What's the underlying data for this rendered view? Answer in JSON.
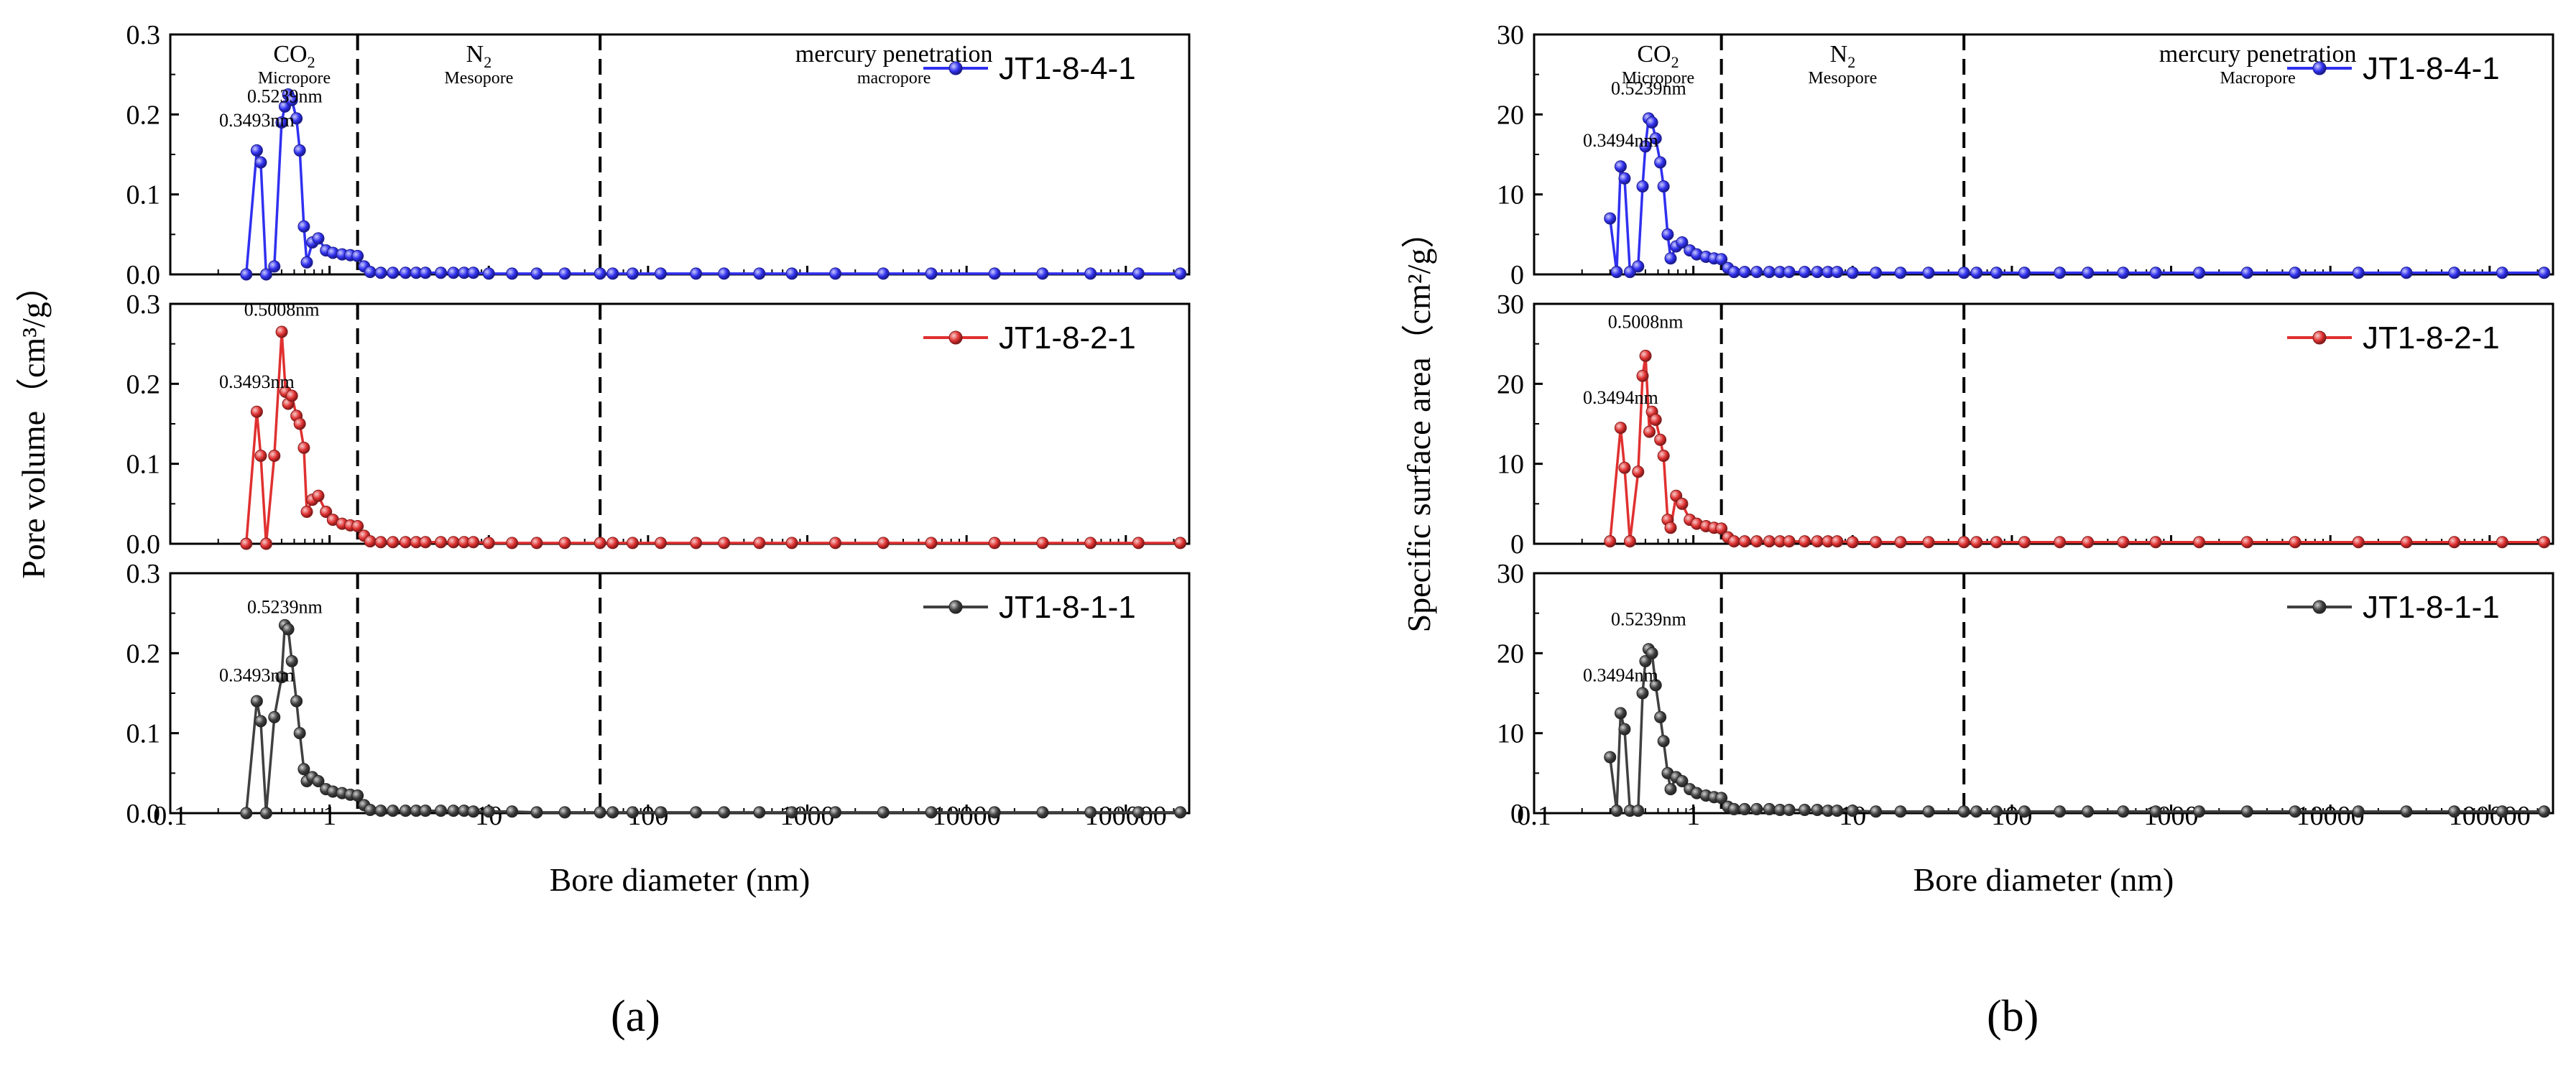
{
  "figure_labels": [
    "(a)",
    "(b)"
  ],
  "chart_data": [
    {
      "type": "line",
      "panel_label": "(a)",
      "xscale": "log",
      "xlabel": "Bore diameter (nm)",
      "ylabel": "Pore volume（cm³/g）",
      "xlim": [
        0.1,
        250000
      ],
      "x_ticks": [
        {
          "value": 0.1,
          "label": "0.1"
        },
        {
          "value": 1,
          "label": "1"
        },
        {
          "value": 10,
          "label": "10"
        },
        {
          "value": 100,
          "label": "100"
        },
        {
          "value": 1000,
          "label": "1000"
        },
        {
          "value": 10000,
          "label": "10000"
        },
        {
          "value": 100000,
          "label": "100000"
        }
      ],
      "dividers": [
        1.5,
        50
      ],
      "regions": [
        {
          "label": "CO₂",
          "sublabel": "Micropore",
          "x": 0.6
        },
        {
          "label": "N₂",
          "sublabel": "Mesopore",
          "x": 8.66
        },
        {
          "label": "mercury penetration",
          "sublabel": "macropore",
          "x": 3500
        }
      ],
      "subplots": [
        {
          "series": {
            "name": "JT1-8-4-1",
            "color": "#3030f0",
            "x": [
              0.3,
              0.3493,
              0.37,
              0.4,
              0.45,
              0.5,
              0.5239,
              0.55,
              0.58,
              0.62,
              0.65,
              0.69,
              0.72,
              0.78,
              0.85,
              0.95,
              1.05,
              1.2,
              1.35,
              1.5,
              1.65,
              1.8,
              2.1,
              2.5,
              3,
              3.5,
              4,
              5,
              6,
              7,
              8,
              10,
              14,
              20,
              30,
              50,
              60,
              80,
              120,
              200,
              300,
              500,
              800,
              1500,
              3000,
              6000,
              15000,
              30000,
              60000,
              120000,
              220000
            ],
            "y": [
              0.0,
              0.155,
              0.14,
              0.0,
              0.01,
              0.19,
              0.21,
              0.225,
              0.218,
              0.195,
              0.155,
              0.06,
              0.015,
              0.04,
              0.045,
              0.03,
              0.027,
              0.025,
              0.024,
              0.023,
              0.01,
              0.003,
              0.002,
              0.002,
              0.002,
              0.002,
              0.002,
              0.002,
              0.002,
              0.002,
              0.002,
              0.001,
              0.001,
              0.001,
              0.001,
              0.001,
              0.001,
              0.001,
              0.001,
              0.001,
              0.001,
              0.001,
              0.001,
              0.001,
              0.001,
              0.001,
              0.001,
              0.001,
              0.001,
              0.001,
              0.001
            ]
          },
          "ylim": [
            0,
            0.3
          ],
          "y_ticks": [
            {
              "value": 0,
              "label": "0.0"
            },
            {
              "value": 0.1,
              "label": "0.1"
            },
            {
              "value": 0.2,
              "label": "0.2"
            },
            {
              "value": 0.3,
              "label": "0.3"
            }
          ],
          "annotations": [
            {
              "text": "0.5239nm",
              "x": 0.5239,
              "y": 0.215
            },
            {
              "text": "0.3493nm",
              "x": 0.3493,
              "y": 0.185
            }
          ]
        },
        {
          "series": {
            "name": "JT1-8-2-1",
            "color": "#e03030",
            "x": [
              0.3,
              0.3493,
              0.37,
              0.4,
              0.45,
              0.5008,
              0.53,
              0.55,
              0.58,
              0.62,
              0.65,
              0.69,
              0.72,
              0.78,
              0.85,
              0.95,
              1.05,
              1.2,
              1.35,
              1.5,
              1.65,
              1.8,
              2.1,
              2.5,
              3,
              3.5,
              4,
              5,
              6,
              7,
              8,
              10,
              14,
              20,
              30,
              50,
              60,
              80,
              120,
              200,
              300,
              500,
              800,
              1500,
              3000,
              6000,
              15000,
              30000,
              60000,
              120000,
              220000
            ],
            "y": [
              0.0,
              0.165,
              0.11,
              0.0,
              0.11,
              0.265,
              0.19,
              0.175,
              0.185,
              0.16,
              0.15,
              0.12,
              0.04,
              0.055,
              0.06,
              0.04,
              0.03,
              0.025,
              0.023,
              0.022,
              0.01,
              0.003,
              0.002,
              0.002,
              0.002,
              0.002,
              0.002,
              0.002,
              0.002,
              0.002,
              0.002,
              0.001,
              0.001,
              0.001,
              0.001,
              0.001,
              0.001,
              0.001,
              0.001,
              0.001,
              0.001,
              0.001,
              0.001,
              0.001,
              0.001,
              0.001,
              0.001,
              0.001,
              0.001,
              0.001,
              0.001
            ]
          },
          "ylim": [
            0,
            0.3
          ],
          "y_ticks": [
            {
              "value": 0,
              "label": "0.0"
            },
            {
              "value": 0.1,
              "label": "0.1"
            },
            {
              "value": 0.2,
              "label": "0.2"
            },
            {
              "value": 0.3,
              "label": "0.3"
            }
          ],
          "annotations": [
            {
              "text": "0.5008nm",
              "x": 0.5008,
              "y": 0.285
            },
            {
              "text": "0.3493nm",
              "x": 0.3493,
              "y": 0.195
            }
          ]
        },
        {
          "series": {
            "name": "JT1-8-1-1",
            "color": "#404040",
            "x": [
              0.3,
              0.3493,
              0.37,
              0.4,
              0.45,
              0.5,
              0.5239,
              0.55,
              0.58,
              0.62,
              0.65,
              0.69,
              0.72,
              0.78,
              0.85,
              0.95,
              1.05,
              1.2,
              1.35,
              1.5,
              1.65,
              1.8,
              2.1,
              2.5,
              3,
              3.5,
              4,
              5,
              6,
              7,
              8,
              10,
              14,
              20,
              30,
              50,
              60,
              80,
              120,
              200,
              300,
              500,
              800,
              1500,
              3000,
              6000,
              15000,
              30000,
              60000,
              120000,
              220000
            ],
            "y": [
              0.0,
              0.14,
              0.115,
              0.0,
              0.12,
              0.17,
              0.235,
              0.23,
              0.19,
              0.14,
              0.1,
              0.055,
              0.04,
              0.045,
              0.04,
              0.03,
              0.027,
              0.025,
              0.023,
              0.022,
              0.01,
              0.004,
              0.003,
              0.003,
              0.003,
              0.003,
              0.003,
              0.003,
              0.003,
              0.003,
              0.002,
              0.002,
              0.002,
              0.001,
              0.001,
              0.001,
              0.001,
              0.001,
              0.001,
              0.001,
              0.001,
              0.001,
              0.001,
              0.001,
              0.001,
              0.001,
              0.001,
              0.001,
              0.001,
              0.001,
              0.001
            ]
          },
          "ylim": [
            0,
            0.3
          ],
          "y_ticks": [
            {
              "value": 0,
              "label": "0.0"
            },
            {
              "value": 0.1,
              "label": "0.1"
            },
            {
              "value": 0.2,
              "label": "0.2"
            },
            {
              "value": 0.3,
              "label": "0.3"
            }
          ],
          "annotations": [
            {
              "text": "0.5239nm",
              "x": 0.5239,
              "y": 0.25
            },
            {
              "text": "0.3493nm",
              "x": 0.3493,
              "y": 0.165
            }
          ]
        }
      ]
    },
    {
      "type": "line",
      "panel_label": "(b)",
      "xscale": "log",
      "xlabel": "Bore diameter (nm)",
      "ylabel": "Specific surface area（cm²/g）",
      "xlim": [
        0.1,
        250000
      ],
      "x_ticks": [
        {
          "value": 0.1,
          "label": "0.1"
        },
        {
          "value": 1,
          "label": "1"
        },
        {
          "value": 10,
          "label": "10"
        },
        {
          "value": 100,
          "label": "100"
        },
        {
          "value": 1000,
          "label": "1000"
        },
        {
          "value": 10000,
          "label": "10000"
        },
        {
          "value": 100000,
          "label": "100000"
        }
      ],
      "dividers": [
        1.5,
        50
      ],
      "regions": [
        {
          "label": "CO₂",
          "sublabel": "Micropore",
          "x": 0.6
        },
        {
          "label": "N₂",
          "sublabel": "Mesopore",
          "x": 8.66
        },
        {
          "label": "mercury penetration",
          "sublabel": "Macropore",
          "x": 3500
        }
      ],
      "subplots": [
        {
          "series": {
            "name": "JT1-8-4-1",
            "color": "#3030f0",
            "x": [
              0.3,
              0.33,
              0.3494,
              0.37,
              0.4,
              0.45,
              0.48,
              0.5,
              0.5239,
              0.55,
              0.58,
              0.62,
              0.65,
              0.69,
              0.72,
              0.78,
              0.85,
              0.95,
              1.05,
              1.2,
              1.35,
              1.5,
              1.65,
              1.8,
              2.1,
              2.5,
              3,
              3.5,
              4,
              5,
              6,
              7,
              8,
              10,
              14,
              20,
              30,
              50,
              60,
              80,
              120,
              200,
              300,
              500,
              800,
              1500,
              3000,
              6000,
              15000,
              30000,
              60000,
              120000,
              220000
            ],
            "y": [
              7,
              0.3,
              13.5,
              12,
              0.3,
              1,
              11,
              16,
              19.5,
              19,
              17,
              14,
              11,
              5,
              2,
              3.5,
              4,
              3,
              2.5,
              2.2,
              2.0,
              1.9,
              0.8,
              0.3,
              0.3,
              0.3,
              0.3,
              0.3,
              0.3,
              0.3,
              0.3,
              0.3,
              0.3,
              0.2,
              0.2,
              0.2,
              0.2,
              0.2,
              0.2,
              0.2,
              0.2,
              0.2,
              0.2,
              0.2,
              0.2,
              0.2,
              0.2,
              0.2,
              0.2,
              0.2,
              0.2,
              0.2,
              0.2
            ]
          },
          "ylim": [
            0,
            30
          ],
          "y_ticks": [
            {
              "value": 0,
              "label": "0"
            },
            {
              "value": 10,
              "label": "10"
            },
            {
              "value": 20,
              "label": "20"
            },
            {
              "value": 30,
              "label": "30"
            }
          ],
          "annotations": [
            {
              "text": "0.5239nm",
              "x": 0.5239,
              "y": 22.5
            },
            {
              "text": "0.3494nm",
              "x": 0.3494,
              "y": 16
            }
          ]
        },
        {
          "series": {
            "name": "JT1-8-2-1",
            "color": "#e03030",
            "x": [
              0.3,
              0.3494,
              0.37,
              0.4,
              0.45,
              0.48,
              0.5008,
              0.53,
              0.55,
              0.58,
              0.62,
              0.65,
              0.69,
              0.72,
              0.78,
              0.85,
              0.95,
              1.05,
              1.2,
              1.35,
              1.5,
              1.65,
              1.8,
              2.1,
              2.5,
              3,
              3.5,
              4,
              5,
              6,
              7,
              8,
              10,
              14,
              20,
              30,
              50,
              60,
              80,
              120,
              200,
              300,
              500,
              800,
              1500,
              3000,
              6000,
              15000,
              30000,
              60000,
              120000,
              220000
            ],
            "y": [
              0.3,
              14.5,
              9.5,
              0.3,
              9,
              21,
              23.5,
              14,
              16.5,
              15.5,
              13,
              11,
              3,
              2,
              6,
              5,
              3,
              2.5,
              2.2,
              2.0,
              1.9,
              0.8,
              0.3,
              0.3,
              0.3,
              0.3,
              0.3,
              0.3,
              0.3,
              0.3,
              0.3,
              0.3,
              0.2,
              0.2,
              0.2,
              0.2,
              0.2,
              0.2,
              0.2,
              0.2,
              0.2,
              0.2,
              0.2,
              0.2,
              0.2,
              0.2,
              0.2,
              0.2,
              0.2,
              0.2,
              0.2,
              0.2
            ]
          },
          "ylim": [
            0,
            30
          ],
          "y_ticks": [
            {
              "value": 0,
              "label": "0"
            },
            {
              "value": 10,
              "label": "10"
            },
            {
              "value": 20,
              "label": "20"
            },
            {
              "value": 30,
              "label": "30"
            }
          ],
          "annotations": [
            {
              "text": "0.5008nm",
              "x": 0.5008,
              "y": 27
            },
            {
              "text": "0.3494nm",
              "x": 0.3494,
              "y": 17.5
            }
          ]
        },
        {
          "series": {
            "name": "JT1-8-1-1",
            "color": "#404040",
            "x": [
              0.3,
              0.33,
              0.3494,
              0.37,
              0.4,
              0.45,
              0.48,
              0.5,
              0.5239,
              0.55,
              0.58,
              0.62,
              0.65,
              0.69,
              0.72,
              0.78,
              0.85,
              0.95,
              1.05,
              1.2,
              1.35,
              1.5,
              1.65,
              1.8,
              2.1,
              2.5,
              3,
              3.5,
              4,
              5,
              6,
              7,
              8,
              10,
              14,
              20,
              30,
              50,
              60,
              80,
              120,
              200,
              300,
              500,
              800,
              1500,
              3000,
              6000,
              15000,
              30000,
              60000,
              120000,
              220000
            ],
            "y": [
              7,
              0.3,
              12.5,
              10.5,
              0.3,
              0.3,
              15,
              19,
              20.5,
              20,
              16,
              12,
              9,
              5,
              3,
              4.5,
              4,
              3,
              2.5,
              2.2,
              2.0,
              1.9,
              0.8,
              0.5,
              0.5,
              0.5,
              0.5,
              0.4,
              0.4,
              0.4,
              0.4,
              0.3,
              0.3,
              0.3,
              0.2,
              0.2,
              0.2,
              0.2,
              0.2,
              0.2,
              0.2,
              0.2,
              0.2,
              0.2,
              0.2,
              0.2,
              0.2,
              0.2,
              0.2,
              0.2,
              0.2,
              0.2,
              0.2
            ]
          },
          "ylim": [
            0,
            30
          ],
          "y_ticks": [
            {
              "value": 0,
              "label": "0"
            },
            {
              "value": 10,
              "label": "10"
            },
            {
              "value": 20,
              "label": "20"
            },
            {
              "value": 30,
              "label": "30"
            }
          ],
          "annotations": [
            {
              "text": "0.5239nm",
              "x": 0.5239,
              "y": 23.5
            },
            {
              "text": "0.3494nm",
              "x": 0.3494,
              "y": 16.5
            }
          ]
        }
      ]
    }
  ]
}
